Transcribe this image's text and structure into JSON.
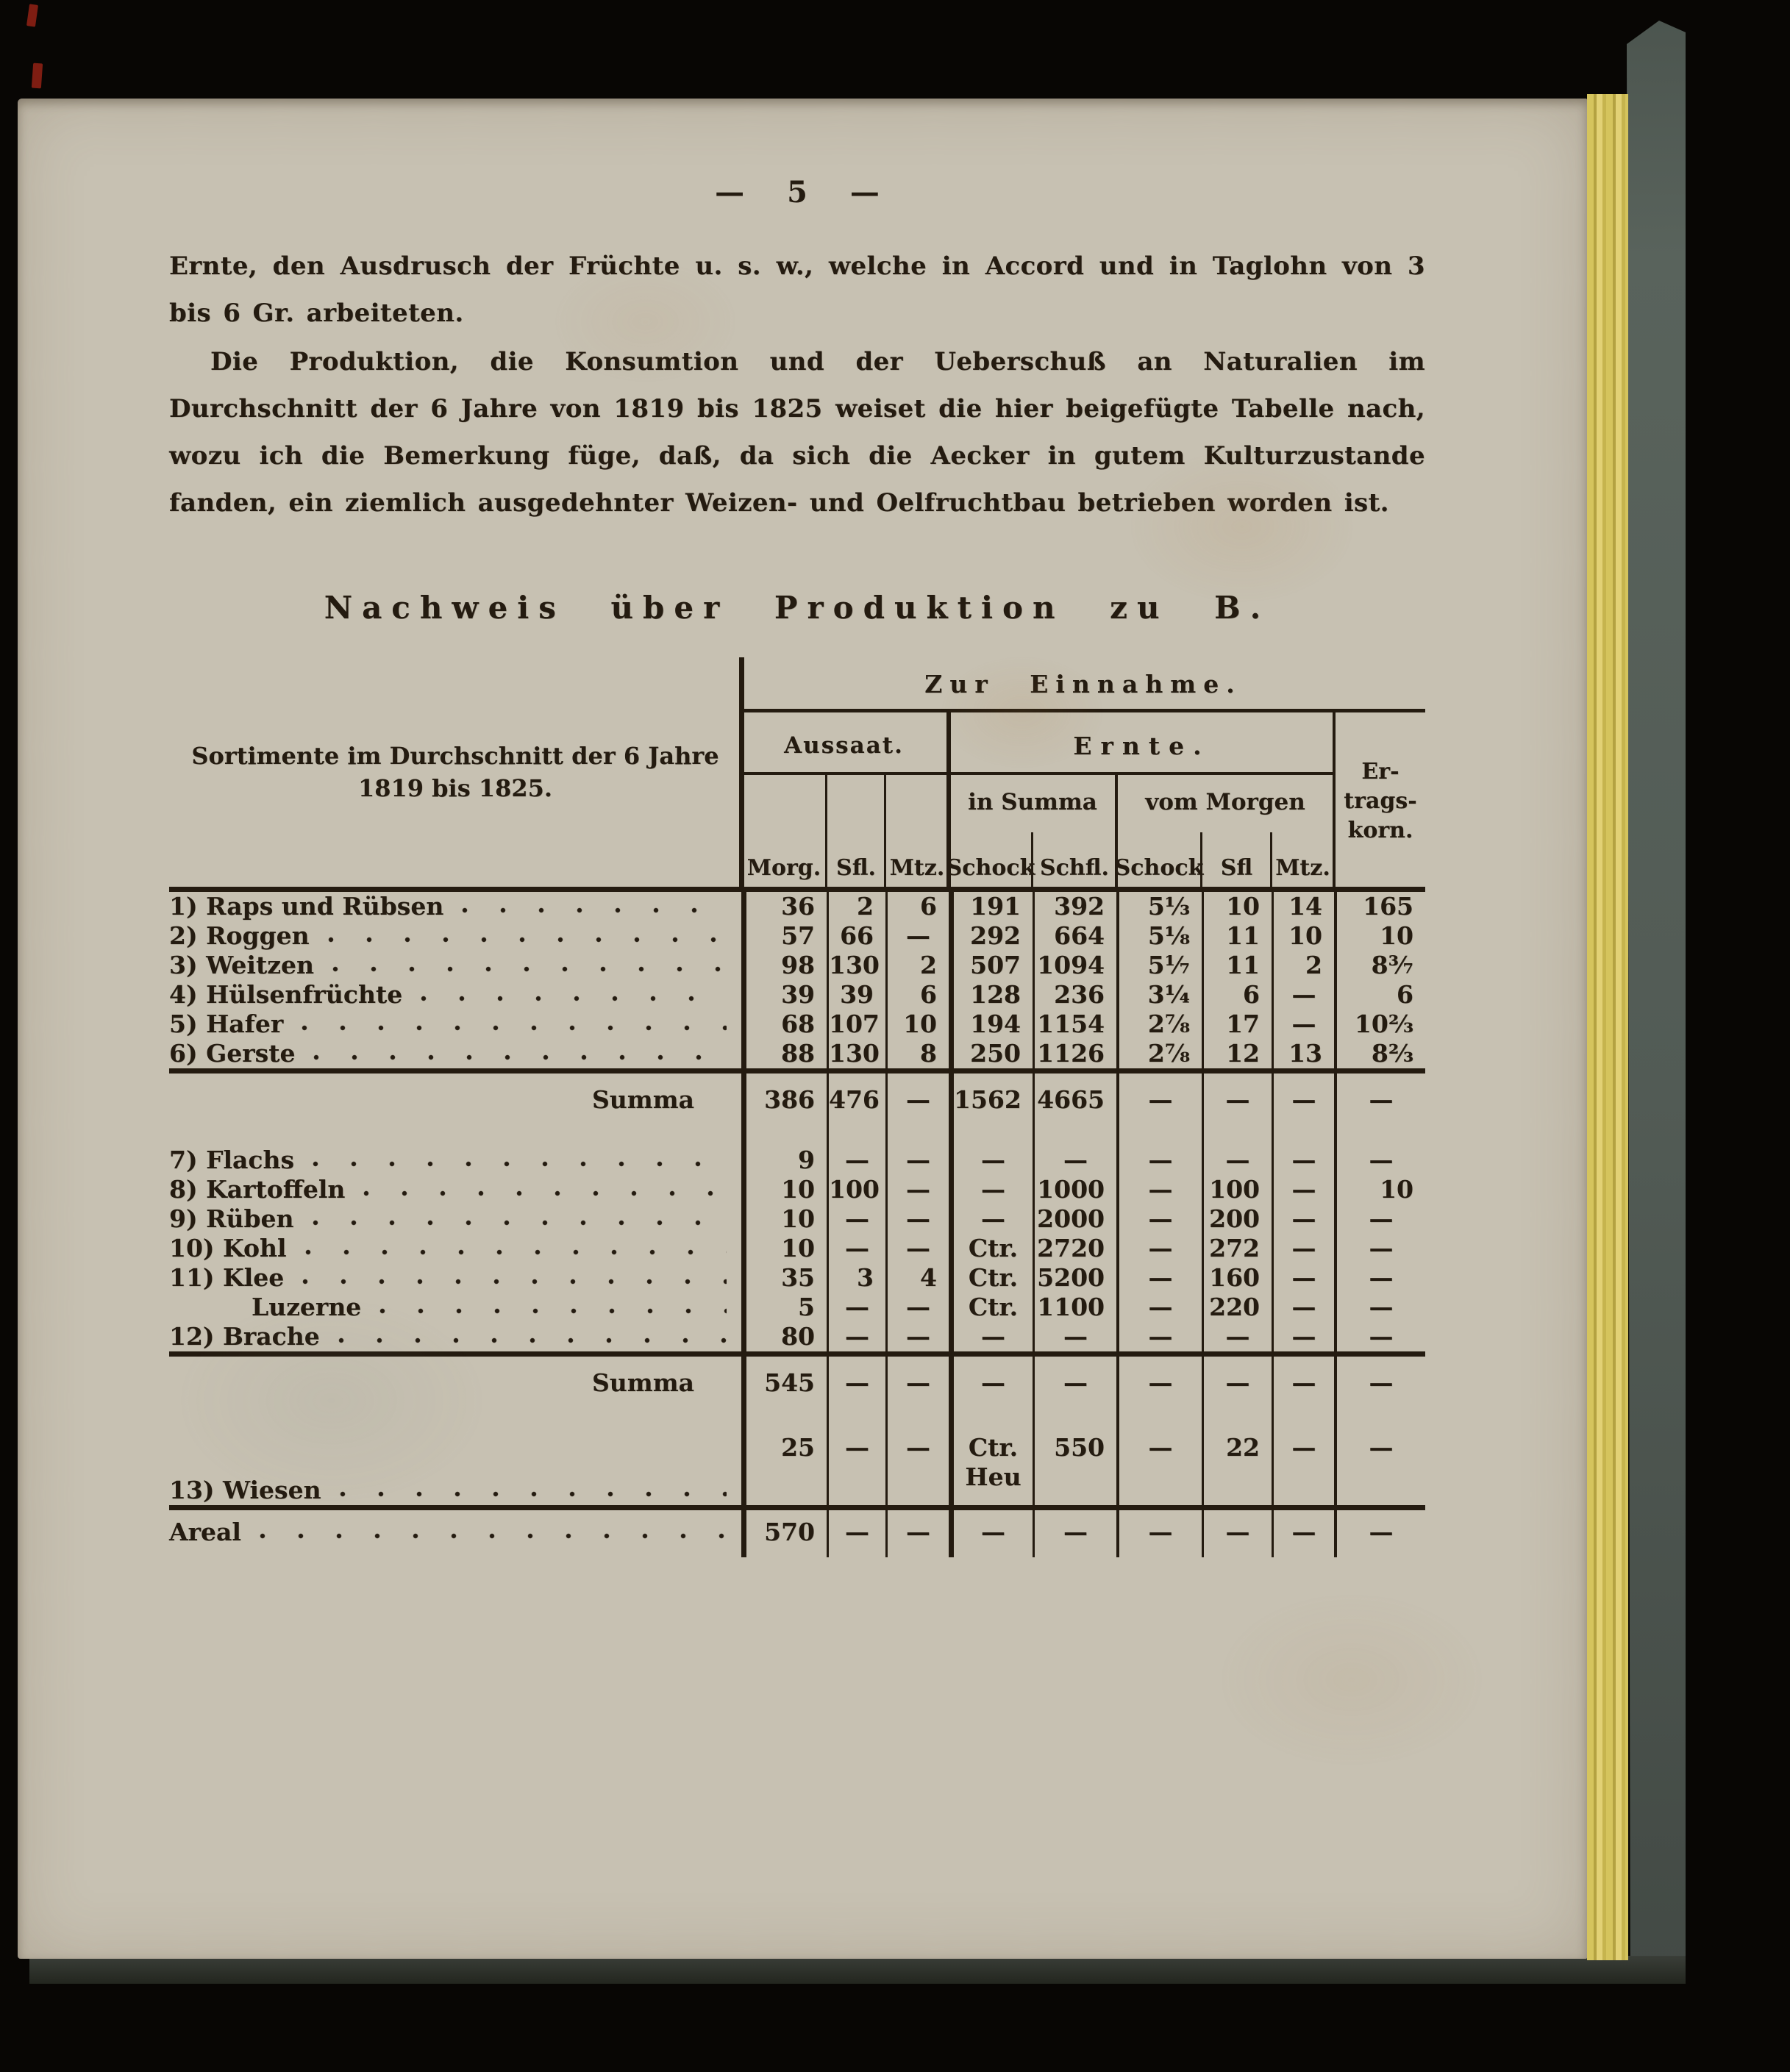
{
  "page": {
    "number": "5",
    "dash": "—"
  },
  "intro": {
    "para1": "Ernte, den Ausdrusch der Früchte u. s. w., welche in Accord und in Taglohn von 3 bis 6 Gr. arbeiteten.",
    "para2": "Die Produktion, die Konsumtion und der Ueberschuß an Naturalien im Durchschnitt der 6 Jahre von 1819 bis 1825 weiset die hier beigefügte Tabelle nach, wozu ich die Bemerkung füge, daß, da sich die Aecker in gutem Kulturzustande fanden, ein ziemlich ausgedehnter Weizen- und Oelfruchtbau betrieben worden ist."
  },
  "table": {
    "title": "Nachweis über Produktion zu B.",
    "row_header": "Sortimente im Durchschnitt der 6 Jahre\n1819 bis 1825.",
    "top_group": "Zur Einnahme.",
    "groups": {
      "aussaat": "Aussaat.",
      "ernte": "Ernte.",
      "in_summa": "in Summa",
      "vom_morgen": "vom Morgen",
      "ertragskorn": "Er-\ntrags-\nkorn."
    },
    "units": {
      "morg": "Morg.",
      "sfl1": "Sfl.",
      "mtz1": "Mtz.",
      "schock1": "Schock",
      "schfl": "Schfl.",
      "schock2": "Schock",
      "sfl2": "Sfl",
      "mtz2": "Mtz."
    },
    "rows": [
      {
        "type": "data",
        "label": "1) Raps und Rübsen",
        "cells": [
          "36",
          "2",
          "6",
          "191",
          "392",
          "5⅓",
          "10",
          "14",
          "165"
        ]
      },
      {
        "type": "data",
        "label": "2) Roggen",
        "cells": [
          "57",
          "66",
          "—",
          "292",
          "664",
          "5⅛",
          "11",
          "10",
          "10"
        ]
      },
      {
        "type": "data",
        "label": "3) Weitzen",
        "cells": [
          "98",
          "130",
          "2",
          "507",
          "1094",
          "5¹⁄₇",
          "11",
          "2",
          "8³⁄₇"
        ]
      },
      {
        "type": "data",
        "label": "4) Hülsenfrüchte",
        "cells": [
          "39",
          "39",
          "6",
          "128",
          "236",
          "3¼",
          "6",
          "—",
          "6"
        ]
      },
      {
        "type": "data",
        "label": "5) Hafer",
        "cells": [
          "68",
          "107",
          "10",
          "194",
          "1154",
          "2⅞",
          "17",
          "—",
          "10⅔"
        ]
      },
      {
        "type": "data",
        "label": "6) Gerste",
        "cells": [
          "88",
          "130",
          "8",
          "250",
          "1126",
          "2⅞",
          "12",
          "13",
          "8⅔"
        ]
      },
      {
        "type": "rule"
      },
      {
        "type": "summa",
        "label": "Summa",
        "cells": [
          "386",
          "476",
          "—",
          "1562",
          "4665",
          "—",
          "—",
          "—",
          "—"
        ]
      },
      {
        "type": "spacer"
      },
      {
        "type": "data",
        "label": "7) Flachs",
        "cells": [
          "9",
          "—",
          "—",
          "—",
          "—",
          "—",
          "—",
          "—",
          "—"
        ]
      },
      {
        "type": "data",
        "label": "8) Kartoffeln",
        "cells": [
          "10",
          "100",
          "—",
          "—",
          "1000",
          "—",
          "100",
          "—",
          "10"
        ]
      },
      {
        "type": "data",
        "label": "9) Rüben",
        "cells": [
          "10",
          "—",
          "—",
          "—",
          "2000",
          "—",
          "200",
          "—",
          "—"
        ]
      },
      {
        "type": "data",
        "label": "10) Kohl",
        "cells": [
          "10",
          "—",
          "—",
          "Ctr.",
          "2720",
          "—",
          "272",
          "—",
          "—"
        ]
      },
      {
        "type": "data",
        "label": "11) Klee",
        "cells": [
          "35",
          "3",
          "4",
          "Ctr.",
          "5200",
          "—",
          "160",
          "—",
          "—"
        ]
      },
      {
        "type": "data",
        "label": "Luzerne",
        "indent": true,
        "cells": [
          "5",
          "—",
          "—",
          "Ctr.",
          "1100",
          "—",
          "220",
          "—",
          "—"
        ]
      },
      {
        "type": "data",
        "label": "12) Brache",
        "cells": [
          "80",
          "—",
          "—",
          "—",
          "—",
          "—",
          "—",
          "—",
          "—"
        ]
      },
      {
        "type": "rule"
      },
      {
        "type": "summa",
        "label": "Summa",
        "cells": [
          "545",
          "—",
          "—",
          "—",
          "—",
          "—",
          "—",
          "—",
          "—"
        ]
      },
      {
        "type": "spacer",
        "small": true
      },
      {
        "type": "data",
        "label": "13) Wiesen",
        "tall": true,
        "cells": [
          "25",
          "—",
          "—",
          "Ctr.\nHeu",
          "550",
          "—",
          "22",
          "—",
          "—"
        ]
      },
      {
        "type": "rule"
      },
      {
        "type": "areal",
        "label": "Areal",
        "dots": true,
        "cells": [
          "570",
          "—",
          "—",
          "—",
          "—",
          "—",
          "—",
          "—",
          "—"
        ]
      }
    ]
  }
}
